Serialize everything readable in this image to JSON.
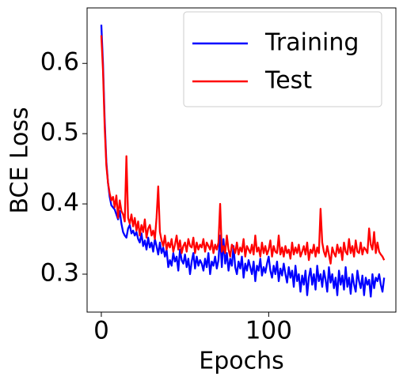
{
  "chart_data": {
    "type": "line",
    "xlabel": "Epochs",
    "ylabel": "BCE Loss",
    "x": [
      0,
      1,
      2,
      3,
      4,
      5,
      6,
      7,
      8,
      9,
      10,
      11,
      12,
      13,
      14,
      15,
      16,
      17,
      18,
      19,
      20,
      21,
      22,
      23,
      24,
      25,
      26,
      27,
      28,
      29,
      30,
      31,
      32,
      33,
      34,
      35,
      36,
      37,
      38,
      39,
      40,
      41,
      42,
      43,
      44,
      45,
      46,
      47,
      48,
      49,
      50,
      51,
      52,
      53,
      54,
      55,
      56,
      57,
      58,
      59,
      60,
      61,
      62,
      63,
      64,
      65,
      66,
      67,
      68,
      69,
      70,
      71,
      72,
      73,
      74,
      75,
      76,
      77,
      78,
      79,
      80,
      81,
      82,
      83,
      84,
      85,
      86,
      87,
      88,
      89,
      90,
      91,
      92,
      93,
      94,
      95,
      96,
      97,
      98,
      99,
      100,
      101,
      102,
      103,
      104,
      105,
      106,
      107,
      108,
      109,
      110,
      111,
      112,
      113,
      114,
      115,
      116,
      117,
      118,
      119,
      120,
      121,
      122,
      123,
      124,
      125,
      126,
      127,
      128,
      129,
      130,
      131,
      132,
      133,
      134,
      135,
      136,
      137,
      138,
      139,
      140,
      141,
      142,
      143,
      144,
      145,
      146,
      147,
      148,
      149,
      150,
      151,
      152,
      153,
      154,
      155,
      156,
      157,
      158,
      159,
      160,
      161,
      162,
      163,
      164,
      165,
      166,
      167,
      168,
      169
    ],
    "series": [
      {
        "name": "Training",
        "color": "#0000ff",
        "values": [
          0.655,
          0.6,
          0.52,
          0.46,
          0.43,
          0.41,
          0.398,
          0.395,
          0.392,
          0.385,
          0.378,
          0.39,
          0.372,
          0.36,
          0.355,
          0.352,
          0.365,
          0.37,
          0.358,
          0.362,
          0.355,
          0.36,
          0.35,
          0.345,
          0.358,
          0.34,
          0.348,
          0.335,
          0.352,
          0.338,
          0.345,
          0.332,
          0.35,
          0.34,
          0.328,
          0.345,
          0.33,
          0.338,
          0.325,
          0.335,
          0.31,
          0.32,
          0.312,
          0.33,
          0.318,
          0.325,
          0.305,
          0.335,
          0.32,
          0.315,
          0.328,
          0.31,
          0.322,
          0.3,
          0.318,
          0.33,
          0.308,
          0.325,
          0.312,
          0.32,
          0.315,
          0.305,
          0.322,
          0.31,
          0.33,
          0.3,
          0.318,
          0.312,
          0.325,
          0.308,
          0.32,
          0.355,
          0.31,
          0.35,
          0.315,
          0.33,
          0.305,
          0.322,
          0.312,
          0.34,
          0.31,
          0.3,
          0.318,
          0.308,
          0.325,
          0.295,
          0.315,
          0.305,
          0.32,
          0.31,
          0.3,
          0.318,
          0.29,
          0.312,
          0.305,
          0.322,
          0.298,
          0.31,
          0.302,
          0.315,
          0.325,
          0.305,
          0.295,
          0.312,
          0.3,
          0.318,
          0.29,
          0.308,
          0.298,
          0.315,
          0.3,
          0.288,
          0.31,
          0.295,
          0.305,
          0.282,
          0.312,
          0.29,
          0.3,
          0.275,
          0.298,
          0.285,
          0.305,
          0.27,
          0.295,
          0.308,
          0.285,
          0.3,
          0.278,
          0.312,
          0.29,
          0.3,
          0.282,
          0.305,
          0.292,
          0.275,
          0.31,
          0.288,
          0.3,
          0.28,
          0.295,
          0.27,
          0.305,
          0.285,
          0.298,
          0.278,
          0.31,
          0.282,
          0.295,
          0.272,
          0.3,
          0.285,
          0.275,
          0.305,
          0.29,
          0.28,
          0.298,
          0.27,
          0.295,
          0.285,
          0.292,
          0.268,
          0.3,
          0.28,
          0.295,
          0.29,
          0.3,
          0.285,
          0.275,
          0.295
        ]
      },
      {
        "name": "Test",
        "color": "#ff0000",
        "values": [
          0.64,
          0.59,
          0.51,
          0.455,
          0.43,
          0.415,
          0.405,
          0.41,
          0.395,
          0.412,
          0.38,
          0.405,
          0.39,
          0.385,
          0.375,
          0.468,
          0.38,
          0.372,
          0.385,
          0.368,
          0.38,
          0.362,
          0.375,
          0.355,
          0.37,
          0.36,
          0.378,
          0.352,
          0.365,
          0.37,
          0.355,
          0.362,
          0.35,
          0.38,
          0.425,
          0.36,
          0.348,
          0.34,
          0.355,
          0.335,
          0.345,
          0.338,
          0.35,
          0.332,
          0.342,
          0.355,
          0.335,
          0.348,
          0.33,
          0.34,
          0.345,
          0.332,
          0.35,
          0.34,
          0.338,
          0.352,
          0.33,
          0.345,
          0.335,
          0.342,
          0.338,
          0.35,
          0.332,
          0.345,
          0.34,
          0.335,
          0.348,
          0.33,
          0.342,
          0.335,
          0.345,
          0.4,
          0.332,
          0.34,
          0.33,
          0.355,
          0.335,
          0.325,
          0.342,
          0.338,
          0.33,
          0.345,
          0.328,
          0.338,
          0.332,
          0.35,
          0.325,
          0.34,
          0.335,
          0.33,
          0.342,
          0.328,
          0.355,
          0.332,
          0.338,
          0.325,
          0.345,
          0.33,
          0.34,
          0.328,
          0.335,
          0.348,
          0.325,
          0.34,
          0.332,
          0.33,
          0.355,
          0.328,
          0.338,
          0.325,
          0.34,
          0.33,
          0.335,
          0.322,
          0.345,
          0.328,
          0.338,
          0.33,
          0.342,
          0.325,
          0.332,
          0.34,
          0.328,
          0.345,
          0.32,
          0.335,
          0.33,
          0.342,
          0.325,
          0.338,
          0.33,
          0.393,
          0.345,
          0.332,
          0.325,
          0.34,
          0.328,
          0.315,
          0.338,
          0.33,
          0.325,
          0.342,
          0.33,
          0.338,
          0.32,
          0.345,
          0.332,
          0.328,
          0.35,
          0.33,
          0.34,
          0.325,
          0.348,
          0.332,
          0.33,
          0.345,
          0.328,
          0.338,
          0.335,
          0.33,
          0.365,
          0.342,
          0.335,
          0.36,
          0.33,
          0.345,
          0.332,
          0.328,
          0.325,
          0.32
        ]
      }
    ],
    "xlim": [
      -8.5,
      176
    ],
    "xticks": [
      0,
      100
    ],
    "ylim": [
      0.246,
      0.679
    ],
    "yticks": [
      0.3,
      0.4,
      0.5,
      0.6
    ],
    "grid": false,
    "legend": "upper right"
  }
}
